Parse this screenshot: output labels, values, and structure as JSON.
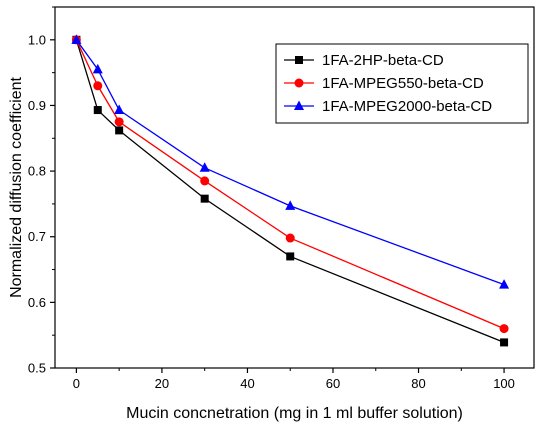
{
  "chart_data": {
    "type": "line",
    "title": "",
    "xlabel": "Mucin concnetration (mg in 1 ml buffer solution)",
    "ylabel": "Normalized diffusion coefficient",
    "xlim": [
      -5,
      107
    ],
    "ylim": [
      0.5,
      1.05
    ],
    "x_ticks": [
      0,
      20,
      40,
      60,
      80,
      100
    ],
    "y_ticks": [
      0.5,
      0.6,
      0.7,
      0.8,
      0.9,
      1.0
    ],
    "x_tick_labels": [
      "0",
      "20",
      "40",
      "60",
      "80",
      "100"
    ],
    "y_tick_labels": [
      "0.5",
      "0.6",
      "0.7",
      "0.8",
      "0.9",
      "1.0"
    ],
    "grid": false,
    "legend_position": "top-right",
    "x": [
      0,
      5,
      10,
      30,
      50,
      100
    ],
    "series": [
      {
        "name": "1FA-2HP-beta-CD",
        "color": "#000000",
        "marker": "square",
        "values": [
          1.0,
          0.893,
          0.862,
          0.758,
          0.67,
          0.539
        ]
      },
      {
        "name": "1FA-MPEG550-beta-CD",
        "color": "#ff0000",
        "marker": "circle",
        "values": [
          1.0,
          0.93,
          0.875,
          0.785,
          0.698,
          0.56
        ]
      },
      {
        "name": "1FA-MPEG2000-beta-CD",
        "color": "#0000ff",
        "marker": "triangle",
        "values": [
          1.0,
          0.955,
          0.893,
          0.805,
          0.747,
          0.627
        ]
      }
    ]
  }
}
